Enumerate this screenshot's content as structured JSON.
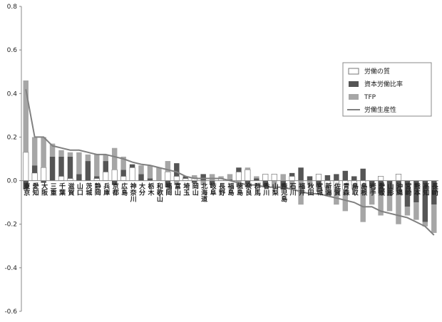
{
  "chart_data": {
    "type": "stacked-bar-line",
    "categories": [
      "東京",
      "愛知",
      "大阪",
      "三重",
      "千葉",
      "滋賀",
      "山口",
      "茨城",
      "静岡",
      "兵庫",
      "京都",
      "広島",
      "神奈川",
      "大分",
      "栃木",
      "和歌山",
      "福岡",
      "富山",
      "埼玉",
      "岡山",
      "北海道",
      "岐阜",
      "長野",
      "福島",
      "徳島",
      "奈良",
      "群馬",
      "香川",
      "山梨",
      "鹿児島",
      "石川",
      "福井",
      "秋田",
      "宮城",
      "新潟",
      "佐賀",
      "青森",
      "鳥取",
      "島根",
      "岩手",
      "愛媛",
      "山形",
      "沖縄",
      "宮崎",
      "熊本",
      "高知",
      "長崎"
    ],
    "series": [
      {
        "name": "労働の質",
        "kind": "bar",
        "color": "#ffffff",
        "values": [
          0.13,
          0.035,
          0.06,
          0,
          0.02,
          0.01,
          0,
          0,
          0.01,
          0.04,
          0.05,
          0.02,
          0.06,
          0,
          0,
          0,
          0.04,
          0.02,
          0.01,
          0.015,
          0,
          0,
          0.01,
          0,
          0.04,
          0.05,
          0,
          0.03,
          0.03,
          0,
          0.02,
          0,
          0,
          0.03,
          -0.03,
          -0.03,
          -0.04,
          -0.02,
          -0.02,
          0,
          0.02,
          0,
          0.03,
          0,
          0,
          0,
          0
        ]
      },
      {
        "name": "資本労働比率",
        "kind": "bar",
        "color": "#555555",
        "values": [
          -0.04,
          0.035,
          -0.01,
          0.11,
          0.09,
          0.1,
          0.03,
          0.09,
          0.01,
          0.05,
          -0.02,
          0.03,
          0.015,
          0.03,
          0.01,
          0,
          -0.03,
          0.06,
          0.01,
          -0.01,
          0.03,
          -0.02,
          0,
          0.005,
          0.02,
          -0.03,
          0.01,
          -0.03,
          0,
          -0.04,
          0.015,
          0.06,
          0.02,
          -0.03,
          0.025,
          0.03,
          0.045,
          0.02,
          0.055,
          -0.03,
          -0.06,
          -0.07,
          -0.05,
          -0.12,
          -0.1,
          -0.19,
          -0.11
        ]
      },
      {
        "name": "TFP",
        "kind": "bar",
        "color": "#a6a6a6",
        "values": [
          0.33,
          0.13,
          0.14,
          0.06,
          0.03,
          0.02,
          0.1,
          0.03,
          0.1,
          0.03,
          0.1,
          0.06,
          0,
          0.04,
          0.06,
          0.06,
          0.05,
          -0.02,
          0,
          0.01,
          -0.02,
          0.03,
          0.01,
          0.025,
          -0.03,
          0.01,
          0.01,
          0,
          -0.03,
          0.03,
          -0.04,
          -0.11,
          -0.02,
          -0.02,
          -0.04,
          -0.08,
          -0.1,
          -0.02,
          -0.17,
          -0.08,
          -0.1,
          -0.07,
          -0.15,
          -0.04,
          -0.08,
          -0.02,
          -0.13
        ]
      },
      {
        "name": "労働生産性",
        "kind": "line",
        "color": "#808080",
        "values": [
          0.42,
          0.2,
          0.2,
          0.16,
          0.15,
          0.14,
          0.14,
          0.13,
          0.12,
          0.12,
          0.11,
          0.1,
          0.085,
          0.075,
          0.07,
          0.06,
          0.05,
          0.04,
          0.02,
          0.01,
          0.01,
          0.01,
          0.01,
          0,
          -0.01,
          -0.02,
          -0.02,
          -0.03,
          -0.03,
          -0.03,
          -0.04,
          -0.05,
          -0.06,
          -0.06,
          -0.07,
          -0.08,
          -0.09,
          -0.1,
          -0.12,
          -0.12,
          -0.14,
          -0.15,
          -0.16,
          -0.17,
          -0.19,
          -0.21,
          -0.25
        ]
      }
    ],
    "ylim": [
      -0.6,
      0.8
    ],
    "yticks": [
      -0.6,
      -0.4,
      -0.2,
      {
        "value": 0,
        "label": "0.0"
      },
      0.2,
      0.4,
      0.6,
      0.8
    ]
  }
}
